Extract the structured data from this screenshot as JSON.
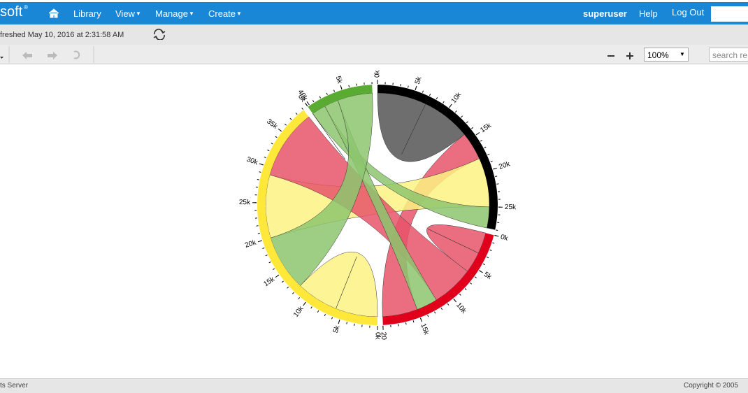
{
  "nav": {
    "brand": "soft",
    "brand_mark": "®",
    "items": [
      "Library",
      "View",
      "Manage",
      "Create"
    ],
    "user": "superuser",
    "help": "Help",
    "logout": "Log Out"
  },
  "status": {
    "refreshed": "freshed May 10, 2016 at 2:31:58 AM"
  },
  "toolbar": {
    "zoom": "100%",
    "search": "search re"
  },
  "chart_data": {
    "type": "chord",
    "groups": [
      {
        "color": "#000000",
        "chord_color": "#555555",
        "ticks": [
          {
            "value": 0,
            "label": "0k"
          },
          {
            "value": 5,
            "label": "5k"
          },
          {
            "value": 10,
            "label": "10k"
          },
          {
            "value": 15,
            "label": "15k"
          },
          {
            "value": 20,
            "label": "20k"
          },
          {
            "value": 25,
            "label": "25k"
          }
        ]
      },
      {
        "color": "#e0001b",
        "chord_color": "#e8546a",
        "ticks": [
          {
            "value": 0,
            "label": "0k"
          },
          {
            "value": 5,
            "label": "5k"
          },
          {
            "value": 10,
            "label": "10k"
          },
          {
            "value": 15,
            "label": "15k"
          },
          20
        ]
      },
      {
        "color": "#ffe83a",
        "chord_color": "#fdf283",
        "ticks": [
          {
            "value": 0,
            "label": "0k"
          },
          {
            "value": 5,
            "label": "5k"
          },
          {
            "value": 10,
            "label": "10k"
          },
          {
            "value": 15,
            "label": "15k"
          },
          {
            "value": 20,
            "label": "20k"
          },
          {
            "value": 25,
            "label": "25k"
          },
          {
            "value": 30,
            "label": "30k"
          },
          {
            "value": 35,
            "label": "35k"
          },
          {
            "value": 40,
            "label": "40k"
          }
        ]
      },
      {
        "color": "#5aab32",
        "chord_color": "#8dc56e",
        "ticks": [
          {
            "value": 0,
            "label": "0k"
          },
          {
            "value": 5,
            "label": "5k"
          }
        ]
      }
    ],
    "matrix": [
      [
        14,
        4,
        7,
        3
      ],
      [
        5,
        6,
        6,
        3
      ],
      [
        9,
        10,
        12,
        8
      ],
      [
        2,
        2,
        5,
        0
      ]
    ],
    "minor_tick_step": 1
  },
  "footer": {
    "left": "ts Server",
    "right": "Copyright © 2005"
  }
}
